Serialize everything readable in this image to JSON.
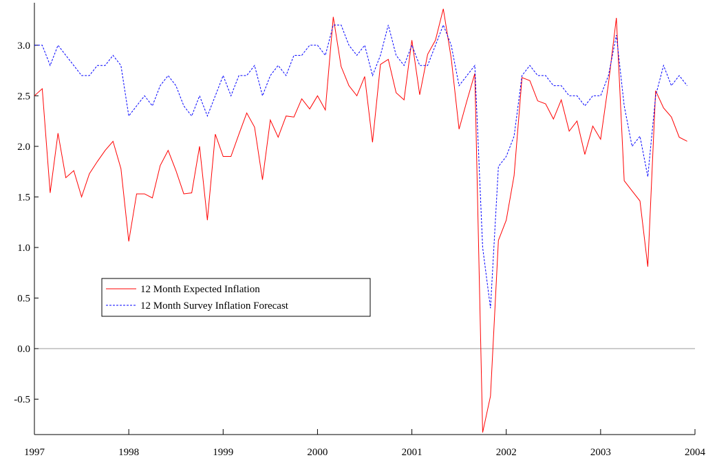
{
  "chart_data": {
    "type": "line",
    "x": [
      1997,
      1997.083,
      1997.167,
      1997.25,
      1997.333,
      1997.417,
      1997.5,
      1997.583,
      1997.667,
      1997.75,
      1997.833,
      1997.917,
      1998,
      1998.083,
      1998.167,
      1998.25,
      1998.333,
      1998.417,
      1998.5,
      1998.583,
      1998.667,
      1998.75,
      1998.833,
      1998.917,
      1999,
      1999.083,
      1999.167,
      1999.25,
      1999.333,
      1999.417,
      1999.5,
      1999.583,
      1999.667,
      1999.75,
      1999.833,
      1999.917,
      2000,
      2000.083,
      2000.167,
      2000.25,
      2000.333,
      2000.417,
      2000.5,
      2000.583,
      2000.667,
      2000.75,
      2000.833,
      2000.917,
      2001,
      2001.083,
      2001.167,
      2001.25,
      2001.333,
      2001.417,
      2001.5,
      2001.583,
      2001.667,
      2001.75,
      2001.833,
      2001.917,
      2002,
      2002.083,
      2002.167,
      2002.25,
      2002.333,
      2002.417,
      2002.5,
      2002.583,
      2002.667,
      2002.75,
      2002.833,
      2002.917,
      2003,
      2003.083,
      2003.167,
      2003.25,
      2003.333,
      2003.417,
      2003.5,
      2003.583,
      2003.667,
      2003.75,
      2003.833,
      2003.917
    ],
    "series": [
      {
        "name": "12 Month Expected Inflation",
        "color": "#ff0000",
        "dash": "solid",
        "values": [
          2.5,
          2.57,
          1.54,
          2.13,
          1.69,
          1.76,
          1.5,
          1.73,
          1.85,
          1.96,
          2.05,
          1.78,
          1.06,
          1.53,
          1.53,
          1.49,
          1.81,
          1.96,
          1.76,
          1.53,
          1.54,
          2.0,
          1.27,
          2.12,
          1.9,
          1.9,
          2.12,
          2.33,
          2.19,
          1.67,
          2.26,
          2.09,
          2.3,
          2.29,
          2.47,
          2.37,
          2.5,
          2.36,
          3.28,
          2.79,
          2.6,
          2.5,
          2.69,
          2.04,
          2.81,
          2.86,
          2.53,
          2.46,
          3.05,
          2.51,
          2.91,
          3.05,
          3.36,
          2.87,
          2.17,
          2.45,
          2.72,
          -0.83,
          -0.47,
          1.07,
          1.27,
          1.71,
          2.68,
          2.65,
          2.45,
          2.42,
          2.27,
          2.46,
          2.15,
          2.25,
          1.92,
          2.2,
          2.07,
          2.62,
          3.27,
          1.66,
          1.56,
          1.46,
          0.81,
          2.55,
          2.38,
          2.29,
          2.09,
          2.05
        ]
      },
      {
        "name": "12 Month Survey Inflation Forecast",
        "color": "#0000ff",
        "dash": "dashed",
        "values": [
          3.0,
          3.0,
          2.8,
          3.0,
          2.9,
          2.8,
          2.7,
          2.7,
          2.8,
          2.8,
          2.9,
          2.8,
          2.3,
          2.4,
          2.5,
          2.4,
          2.6,
          2.7,
          2.6,
          2.4,
          2.3,
          2.5,
          2.3,
          2.5,
          2.7,
          2.5,
          2.7,
          2.7,
          2.8,
          2.5,
          2.7,
          2.8,
          2.7,
          2.9,
          2.9,
          3.0,
          3.0,
          2.9,
          3.2,
          3.2,
          3.0,
          2.9,
          3.0,
          2.7,
          2.9,
          3.2,
          2.9,
          2.8,
          3.0,
          2.8,
          2.8,
          3.0,
          3.2,
          3.0,
          2.6,
          2.7,
          2.8,
          1.0,
          0.4,
          1.8,
          1.9,
          2.1,
          2.7,
          2.8,
          2.7,
          2.7,
          2.6,
          2.6,
          2.5,
          2.5,
          2.4,
          2.5,
          2.5,
          2.7,
          3.1,
          2.4,
          2.0,
          2.1,
          1.7,
          2.5,
          2.8,
          2.6,
          2.7,
          2.6
        ]
      }
    ],
    "xlim": [
      1997,
      2004
    ],
    "xticks": [
      1997,
      1998,
      1999,
      2000,
      2001,
      2002,
      2003,
      2004
    ],
    "ylim": [
      -0.85,
      3.42
    ],
    "yticks": [
      -0.5,
      {
        "value": 0,
        "label": "0.0"
      },
      0.5,
      {
        "value": 1,
        "label": "1.0"
      },
      1.5,
      {
        "value": 2,
        "label": "2.0"
      },
      2.5,
      {
        "value": 3,
        "label": "3.0"
      }
    ],
    "reference_line": 0,
    "legend": "center left"
  }
}
